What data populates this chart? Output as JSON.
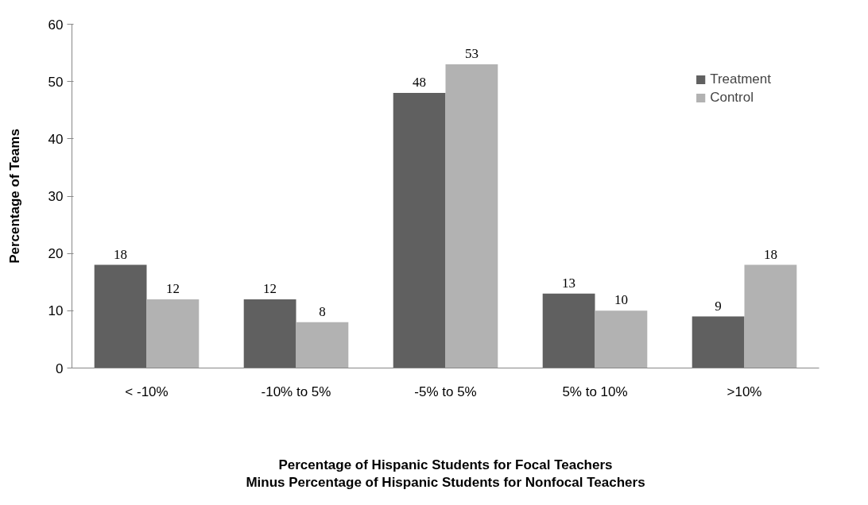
{
  "chart_data": {
    "type": "bar",
    "xlabel": "Percentage of Hispanic Students for Focal Teachers\nMinus Percentage of Hispanic Students for Nonfocal Teachers",
    "ylabel": "Percentage of Teams",
    "categories": [
      "< -10%",
      "-10% to 5%",
      "-5% to 5%",
      "5% to 10%",
      ">10%"
    ],
    "series": [
      {
        "name": "Treatment",
        "color": "#606060",
        "values": [
          18,
          12,
          48,
          13,
          9
        ]
      },
      {
        "name": "Control",
        "color": "#b2b2b2",
        "values": [
          12,
          8,
          53,
          10,
          18
        ]
      }
    ],
    "ylim": [
      0,
      60
    ],
    "yticks": [
      0,
      10,
      20,
      30,
      40,
      50,
      60
    ],
    "data_labels": true,
    "grid": false,
    "legend": "top right"
  }
}
